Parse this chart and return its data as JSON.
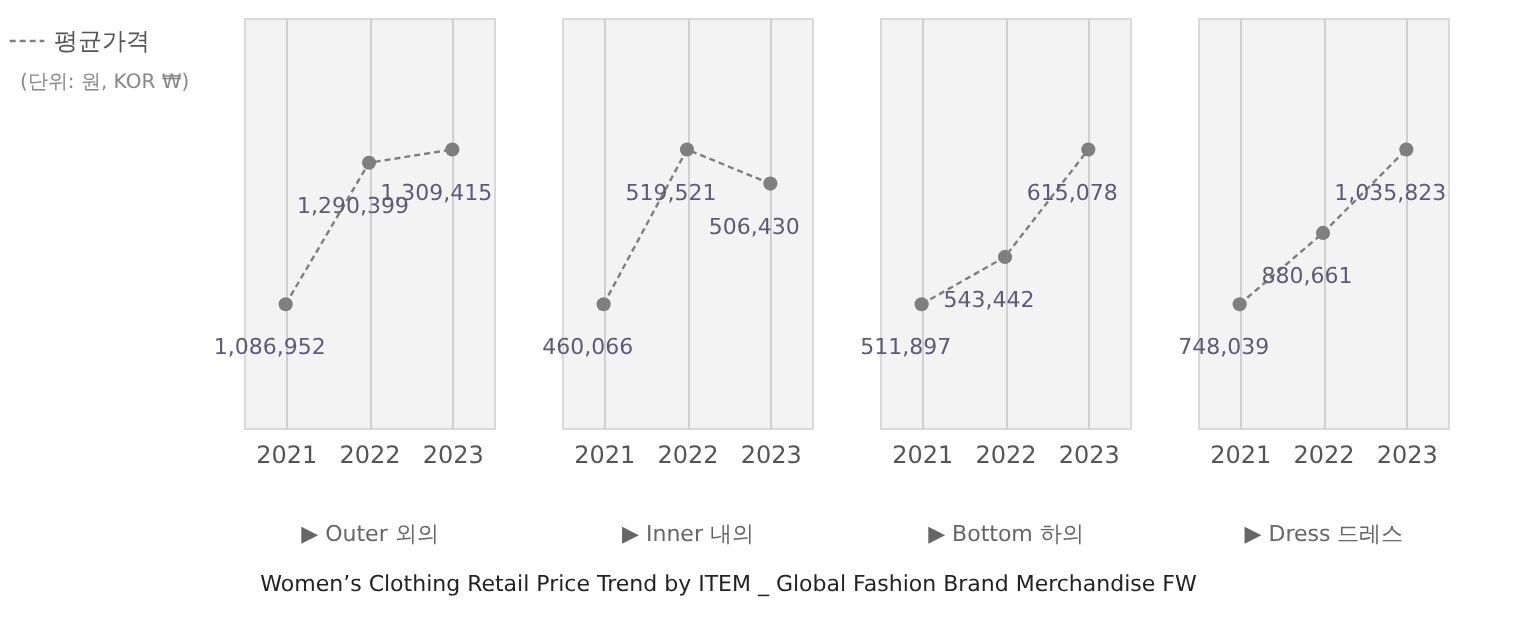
{
  "chart_data": [
    {
      "type": "line",
      "title": "Women’s Clothing Retail Price Trend by ITEM  _ Global Fashion Brand Merchandise FW",
      "xlabel": "▶  Outer 외의",
      "annotations": [
        "(단위: 원, KOR ₩)"
      ],
      "categories": [
        "2021",
        "2022",
        "2023"
      ],
      "series": [
        {
          "name": "평균가격",
          "color": "#7f7f7f",
          "values": [
            1086952,
            1290399,
            1309415
          ],
          "value_labels": [
            "1,086,952",
            "1,290,399",
            "1,309,415"
          ]
        }
      ],
      "marker": "circle",
      "line_style": "dashed",
      "grid": "x",
      "legend": "top left",
      "tick_labels": "x"
    },
    {
      "type": "line",
      "xlabel": "▶  Inner  내의",
      "categories": [
        "2021",
        "2022",
        "2023"
      ],
      "series": [
        {
          "color": "#7f7f7f",
          "values": [
            460066,
            519521,
            506430
          ],
          "value_labels": [
            "460,066",
            "519,521",
            "506,430"
          ]
        }
      ],
      "marker": "circle",
      "line_style": "dashed",
      "grid": "x",
      "tick_labels": "x"
    },
    {
      "type": "line",
      "xlabel": "▶  Bottom  하의",
      "categories": [
        "2021",
        "2022",
        "2023"
      ],
      "series": [
        {
          "color": "#7f7f7f",
          "values": [
            511897,
            543442,
            615078
          ],
          "value_labels": [
            "511,897",
            "543,442",
            "615,078"
          ]
        }
      ],
      "marker": "circle",
      "line_style": "dashed",
      "grid": "x",
      "tick_labels": "x"
    },
    {
      "type": "line",
      "xlabel": "▶  Dress  드레스",
      "categories": [
        "2021",
        "2022",
        "2023"
      ],
      "series": [
        {
          "color": "#7f7f7f",
          "values": [
            748039,
            880661,
            1035823
          ],
          "value_labels": [
            "748,039",
            "880,661",
            "1,035,823"
          ]
        }
      ],
      "marker": "circle",
      "line_style": "dashed",
      "grid": "x",
      "tick_labels": "x"
    }
  ]
}
